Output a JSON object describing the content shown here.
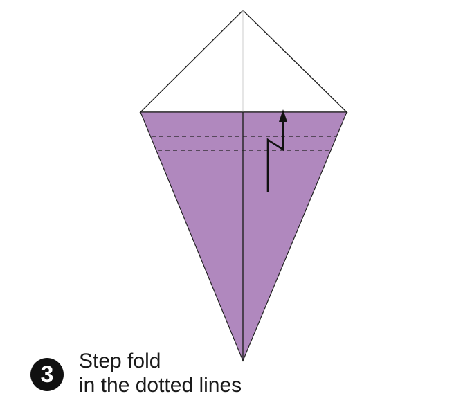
{
  "step": {
    "number": "3",
    "caption_line1": "Step fold",
    "caption_line2": "in the dotted lines"
  },
  "colors": {
    "paper_color": "#b088be",
    "outline": "#222222",
    "center_crease": "#d6d6d6",
    "arrow": "#111111"
  },
  "icons": {
    "step_fold_arrow": "zigzag-arrow-up-icon"
  }
}
